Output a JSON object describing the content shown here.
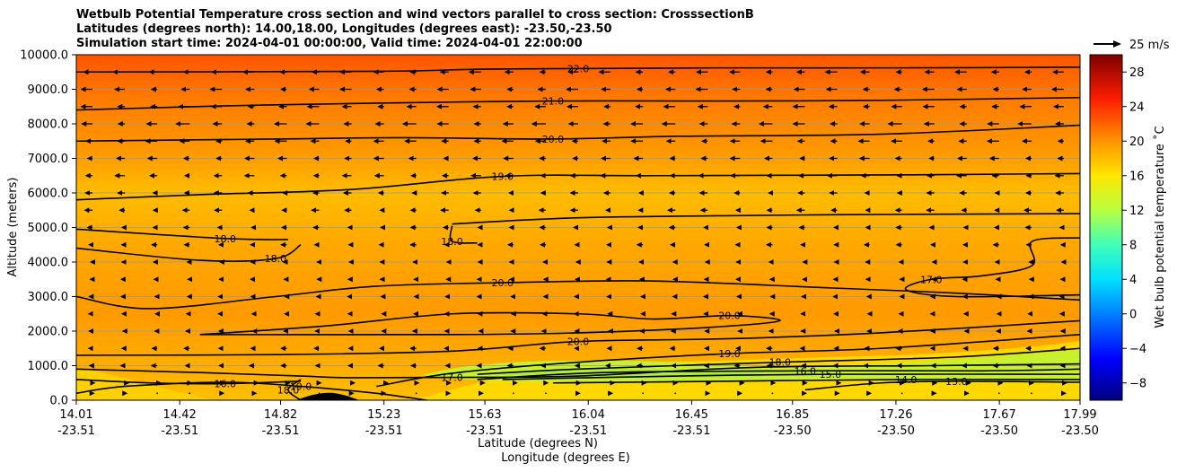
{
  "title_lines": [
    "Wetbulb Potential Temperature cross section and wind vectors parallel to cross section: CrosssectionB",
    "Latitudes (degrees north): 14.00,18.00, Longitudes (degrees east): -23.50,-23.50",
    "Simulation start time: 2024-04-01 00:00:00, Valid time: 2024-04-01 22:00:00"
  ],
  "chart_data": {
    "type": "heatmap",
    "subtype": "cross-section contour with wind vectors",
    "title": "Wetbulb Potential Temperature cross section and wind vectors parallel to cross section: CrosssectionB",
    "ylabel": "Altitude (meters)",
    "xlabel": "Latitude (degrees N)",
    "xlabel2": "Longitude (degrees E)",
    "ylim": [
      0,
      10000
    ],
    "xlim": [
      14.01,
      17.99
    ],
    "yticks": [
      0,
      1000,
      2000,
      3000,
      4000,
      5000,
      6000,
      7000,
      8000,
      9000,
      10000
    ],
    "ytick_labels": [
      "0.0",
      "1000.0",
      "2000.0",
      "3000.0",
      "4000.0",
      "5000.0",
      "6000.0",
      "7000.0",
      "8000.0",
      "9000.0",
      "10000.0"
    ],
    "xticks": [
      {
        "lat": 14.01,
        "lat_label": "14.01",
        "lon_label": "-23.51"
      },
      {
        "lat": 14.42,
        "lat_label": "14.42",
        "lon_label": "-23.51"
      },
      {
        "lat": 14.82,
        "lat_label": "14.82",
        "lon_label": "-23.51"
      },
      {
        "lat": 15.23,
        "lat_label": "15.23",
        "lon_label": "-23.51"
      },
      {
        "lat": 15.63,
        "lat_label": "15.63",
        "lon_label": "-23.51"
      },
      {
        "lat": 16.04,
        "lat_label": "16.04",
        "lon_label": "-23.51"
      },
      {
        "lat": 16.45,
        "lat_label": "16.45",
        "lon_label": "-23.51"
      },
      {
        "lat": 16.85,
        "lat_label": "16.85",
        "lon_label": "-23.50"
      },
      {
        "lat": 17.26,
        "lat_label": "17.26",
        "lon_label": "-23.50"
      },
      {
        "lat": 17.67,
        "lat_label": "17.67",
        "lon_label": "-23.50"
      },
      {
        "lat": 17.99,
        "lat_label": "17.99",
        "lon_label": "-23.50"
      }
    ],
    "colorbar": {
      "label": "Wet bulb potential temperature ˚C",
      "range": [
        -10,
        30
      ],
      "ticks": [
        -8,
        -4,
        0,
        4,
        8,
        12,
        16,
        20,
        24,
        28
      ],
      "tick_labels": [
        "−8",
        "−4",
        "0",
        "4",
        "8",
        "12",
        "16",
        "20",
        "24",
        "28"
      ]
    },
    "quiver_key": {
      "label": "25 m/s",
      "speed_ms": 25
    },
    "contours": [
      {
        "level": 22.0,
        "label": "22.0",
        "points": [
          [
            14.01,
            9500
          ],
          [
            15.2,
            9520
          ],
          [
            15.6,
            9580
          ],
          [
            16.0,
            9600
          ],
          [
            16.6,
            9620
          ],
          [
            17.3,
            9620
          ],
          [
            17.99,
            9640
          ]
        ]
      },
      {
        "level": 21.0,
        "label": "21.0",
        "points": [
          [
            14.01,
            8400
          ],
          [
            14.6,
            8520
          ],
          [
            15.2,
            8600
          ],
          [
            15.9,
            8660
          ],
          [
            16.6,
            8660
          ],
          [
            17.2,
            8680
          ],
          [
            17.99,
            8760
          ]
        ]
      },
      {
        "level": 20.0,
        "label": "20.0",
        "points": [
          [
            14.01,
            7500
          ],
          [
            14.8,
            7560
          ],
          [
            15.3,
            7600
          ],
          [
            15.9,
            7560
          ],
          [
            16.4,
            7640
          ],
          [
            17.2,
            7700
          ],
          [
            17.99,
            7960
          ]
        ]
      },
      {
        "level": 19.0,
        "label": "19.0",
        "points": [
          [
            14.01,
            5800
          ],
          [
            14.5,
            5950
          ],
          [
            15.1,
            6100
          ],
          [
            15.7,
            6480
          ],
          [
            16.3,
            6500
          ],
          [
            17.2,
            6520
          ],
          [
            17.99,
            6560
          ]
        ]
      },
      {
        "level": 18.0,
        "label": "18.0",
        "points": [
          [
            14.01,
            4400
          ],
          [
            14.5,
            4050
          ],
          [
            14.8,
            4100
          ],
          [
            14.9,
            4500
          ]
        ]
      },
      {
        "level": 18.0,
        "label": "18.0",
        "points": [
          [
            14.01,
            4950
          ],
          [
            14.6,
            4680
          ],
          [
            14.85,
            4650
          ]
        ]
      },
      {
        "level": 18.0,
        "label": "18.0",
        "points": [
          [
            15.5,
            5050
          ],
          [
            15.5,
            4600
          ],
          [
            15.6,
            4550
          ]
        ]
      },
      {
        "level": 18.0,
        "label": "",
        "points": [
          [
            15.5,
            5100
          ],
          [
            16.0,
            5280
          ],
          [
            16.7,
            5350
          ],
          [
            17.3,
            5380
          ],
          [
            17.99,
            5400
          ]
        ]
      },
      {
        "level": 17.0,
        "label": "17.0",
        "points": [
          [
            17.99,
            4700
          ],
          [
            17.8,
            4600
          ],
          [
            17.8,
            3900
          ],
          [
            17.6,
            3600
          ],
          [
            17.4,
            3500
          ],
          [
            17.3,
            3200
          ],
          [
            17.5,
            3000
          ],
          [
            17.99,
            3050
          ]
        ]
      },
      {
        "level": 20.0,
        "label": "20.0",
        "points": [
          [
            14.01,
            3000
          ],
          [
            14.3,
            2650
          ],
          [
            14.8,
            3000
          ],
          [
            15.2,
            3300
          ],
          [
            15.7,
            3400
          ],
          [
            16.3,
            3450
          ],
          [
            17.0,
            3250
          ],
          [
            17.5,
            3100
          ],
          [
            17.99,
            2900
          ]
        ]
      },
      {
        "level": 20.0,
        "label": "20.0",
        "points": [
          [
            14.5,
            1900
          ],
          [
            15.0,
            2150
          ],
          [
            15.5,
            2500
          ],
          [
            16.0,
            2500
          ],
          [
            16.3,
            2350
          ],
          [
            16.6,
            2450
          ],
          [
            16.8,
            2300
          ],
          [
            16.5,
            2100
          ],
          [
            16.0,
            1950
          ],
          [
            15.5,
            1900
          ],
          [
            14.5,
            1900
          ]
        ]
      },
      {
        "level": 20.0,
        "label": "20.0",
        "points": [
          [
            14.01,
            1300
          ],
          [
            14.8,
            1320
          ],
          [
            15.5,
            1420
          ],
          [
            16.0,
            1700
          ],
          [
            16.6,
            1780
          ],
          [
            17.2,
            1950
          ],
          [
            17.99,
            2300
          ]
        ]
      },
      {
        "level": 19.0,
        "label": "19.0",
        "points": [
          [
            15.2,
            400
          ],
          [
            15.5,
            780
          ],
          [
            16.0,
            1100
          ],
          [
            16.6,
            1350
          ],
          [
            17.2,
            1500
          ],
          [
            17.99,
            1900
          ]
        ]
      },
      {
        "level": 18.0,
        "label": "18.0",
        "points": [
          [
            15.6,
            750
          ],
          [
            16.0,
            900
          ],
          [
            16.8,
            1100
          ],
          [
            17.5,
            1250
          ],
          [
            17.99,
            1500
          ]
        ]
      },
      {
        "level": 17.0,
        "label": "17.0",
        "points": [
          [
            14.01,
            900
          ],
          [
            14.5,
            800
          ],
          [
            14.9,
            700
          ],
          [
            15.1,
            650
          ],
          [
            15.5,
            660
          ],
          [
            16.0,
            700
          ],
          [
            16.7,
            950
          ],
          [
            17.4,
            1000
          ],
          [
            17.99,
            1050
          ]
        ]
      },
      {
        "level": 16.0,
        "label": "16.0",
        "points": [
          [
            15.6,
            600
          ],
          [
            16.1,
            800
          ],
          [
            16.9,
            850
          ],
          [
            17.6,
            850
          ],
          [
            17.99,
            900
          ]
        ]
      },
      {
        "level": 15.0,
        "label": "15.0",
        "points": [
          [
            15.7,
            600
          ],
          [
            16.4,
            700
          ],
          [
            17.0,
            750
          ],
          [
            17.99,
            750
          ]
        ]
      },
      {
        "level": 19.0,
        "label": "19.0",
        "points": [
          [
            14.01,
            200
          ],
          [
            14.2,
            400
          ],
          [
            14.6,
            520
          ],
          [
            14.9,
            400
          ],
          [
            15.2,
            200
          ],
          [
            15.4,
            0
          ]
        ]
      },
      {
        "level": 18.0,
        "label": "18.0",
        "points": [
          [
            14.9,
            0
          ],
          [
            14.85,
            300
          ],
          [
            14.9,
            600
          ]
        ]
      },
      {
        "level": 16.0,
        "label": "16.0",
        "points": [
          [
            14.01,
            600
          ],
          [
            14.3,
            500
          ],
          [
            14.6,
            480
          ],
          [
            14.9,
            550
          ]
        ]
      },
      {
        "level": 14.0,
        "label": "14.0",
        "points": [
          [
            15.9,
            500
          ],
          [
            16.6,
            550
          ],
          [
            17.3,
            600
          ],
          [
            17.99,
            600
          ]
        ]
      },
      {
        "level": 13.0,
        "label": "13.0",
        "points": [
          [
            16.9,
            300
          ],
          [
            17.2,
            500
          ],
          [
            17.5,
            550
          ],
          [
            17.99,
            520
          ]
        ]
      }
    ],
    "contour_labels_extra": [
      "20.0",
      "20.0",
      "18.0",
      "16.0",
      "18.0",
      "17.0",
      "17.0",
      "17.0",
      "16.0",
      "14.0",
      "13.0",
      "12.0",
      "19.0",
      "18.0"
    ],
    "wind_vectors": {
      "description": "arrows parallel to cross section; mostly pointing toward lower latitude (leftwards), stronger aloft",
      "rows_altitude_m": [
        9500,
        9000,
        8500,
        8000,
        7500,
        7000,
        6500,
        6000,
        5500,
        5000,
        4500,
        4000,
        3500,
        3000,
        2500,
        2000,
        1500,
        1000,
        500,
        200
      ],
      "u_ms_by_row": [
        -6,
        -6,
        -6,
        -7,
        -6,
        -5,
        -5,
        -4,
        -4,
        -3,
        -3,
        -2,
        -2,
        -2,
        -2,
        -2,
        -3,
        -3,
        2,
        1
      ]
    }
  }
}
